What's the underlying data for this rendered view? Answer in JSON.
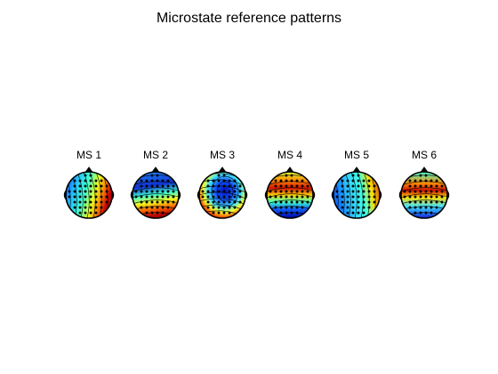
{
  "figure": {
    "title": "Microstate reference patterns",
    "colormap": "jet",
    "maps": [
      {
        "label": "MS 1",
        "pattern": "left-right",
        "pos_side": "lower-right"
      },
      {
        "label": "MS 2",
        "pattern": "anterior-posterior",
        "pos_side": "lower-left"
      },
      {
        "label": "MS 3",
        "pattern": "central-blue",
        "pos_side": "left-ring"
      },
      {
        "label": "MS 4",
        "pattern": "anterior-posterior",
        "pos_side": "upper"
      },
      {
        "label": "MS 5",
        "pattern": "left-right",
        "pos_side": "right"
      },
      {
        "label": "MS 6",
        "pattern": "anterior-posterior",
        "pos_side": "upper"
      }
    ]
  }
}
